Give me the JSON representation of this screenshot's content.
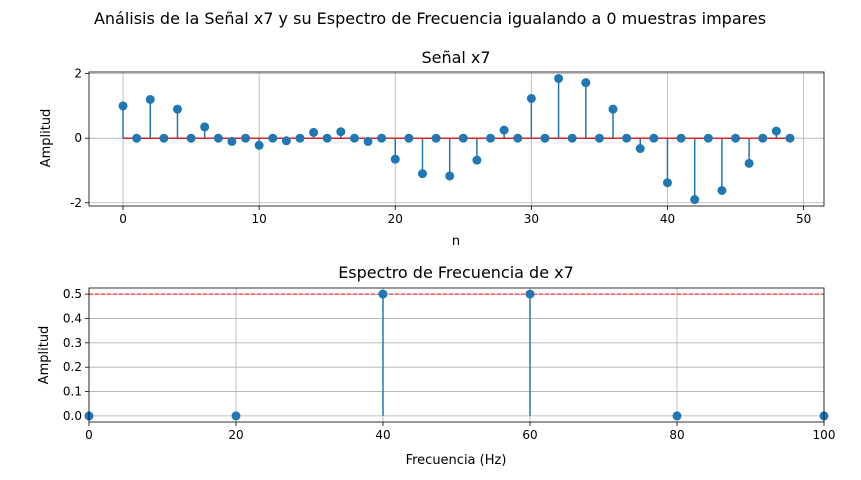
{
  "figure": {
    "suptitle": "Análisis de la Señal x7 y su Espectro de Frecuencia igualando a 0 muestras impares"
  },
  "chart_data": [
    {
      "type": "stem",
      "title": "Señal x7",
      "xlabel": "n",
      "ylabel": "Amplitud",
      "xlim": [
        -2.5,
        51.5
      ],
      "ylim": [
        -2.1,
        2.05
      ],
      "xticks": [
        0,
        10,
        20,
        30,
        40,
        50
      ],
      "yticks": [
        -2,
        0,
        2
      ],
      "grid": true,
      "baseline": 0,
      "x": [
        0,
        1,
        2,
        3,
        4,
        5,
        6,
        7,
        8,
        9,
        10,
        11,
        12,
        13,
        14,
        15,
        16,
        17,
        18,
        19,
        20,
        21,
        22,
        23,
        24,
        25,
        26,
        27,
        28,
        29,
        30,
        31,
        32,
        33,
        34,
        35,
        36,
        37,
        38,
        39,
        40,
        41,
        42,
        43,
        44,
        45,
        46,
        47,
        48,
        49
      ],
      "values": [
        1.0,
        0,
        1.2,
        0,
        0.9,
        0,
        0.35,
        0,
        -0.1,
        0,
        -0.22,
        0,
        -0.08,
        0,
        0.18,
        0,
        0.2,
        0,
        -0.1,
        0,
        -0.65,
        0,
        -1.1,
        0,
        -1.17,
        0,
        -0.68,
        0,
        0.25,
        0,
        1.23,
        0,
        1.85,
        0,
        1.72,
        0,
        0.9,
        0,
        -0.32,
        0,
        -1.38,
        0,
        -1.9,
        0,
        -1.62,
        0,
        -0.78,
        0,
        0.22,
        0
      ],
      "colors": {
        "stem": "#1f77b4",
        "baseline": "#d62728",
        "grid": "#b0b0b0"
      }
    },
    {
      "type": "stem",
      "title": "Espectro de Frecuencia de x7",
      "xlabel": "Frecuencia (Hz)",
      "ylabel": "Amplitud",
      "xlim": [
        0,
        100
      ],
      "ylim": [
        -0.025,
        0.525
      ],
      "xticks": [
        0,
        20,
        40,
        60,
        80,
        100
      ],
      "yticks": [
        0.0,
        0.1,
        0.2,
        0.3,
        0.4,
        0.5
      ],
      "grid": true,
      "hline": {
        "y": 0.5,
        "style": "dashed",
        "color": "#ff0000"
      },
      "x": [
        0,
        20,
        40,
        60,
        80,
        100
      ],
      "values": [
        0,
        0,
        0.5,
        0.5,
        0,
        0
      ],
      "colors": {
        "stem": "#1f77b4",
        "grid": "#b0b0b0"
      }
    }
  ]
}
